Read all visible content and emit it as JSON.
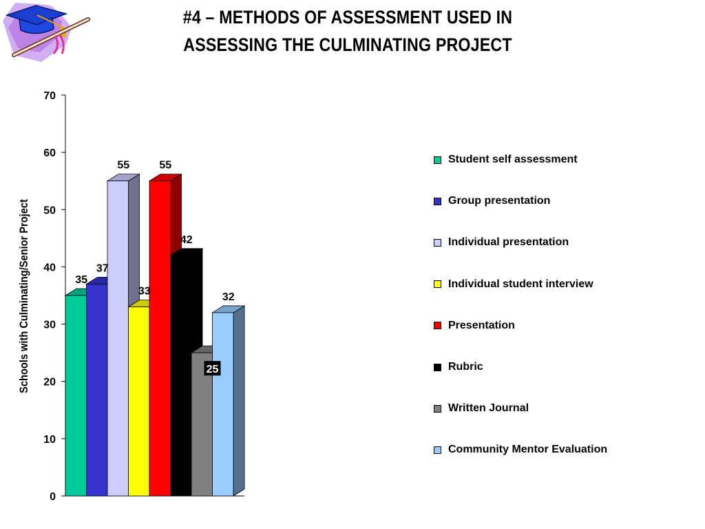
{
  "slide": {
    "title_line1": "#4 – METHODS OF ASSESSMENT USED IN",
    "title_line2": "ASSESSING THE CULMINATING PROJECT"
  },
  "chart_data": {
    "type": "bar",
    "style": "3d",
    "title": "#4 – METHODS OF ASSESSMENT USED IN ASSESSING THE CULMINATING PROJECT",
    "xlabel": "",
    "ylabel": "Schools with Culminating/Senior Project",
    "ylim": [
      0,
      70
    ],
    "yticks": [
      "0",
      "10",
      "20",
      "30",
      "40",
      "50",
      "60",
      "70"
    ],
    "grid": false,
    "legend_position": "right",
    "series": [
      {
        "name": "Student self assessment",
        "value": 35,
        "color": "#00CC99"
      },
      {
        "name": "Group presentation",
        "value": 37,
        "color": "#3333CC"
      },
      {
        "name": "Individual presentation",
        "value": 55,
        "color": "#CCCCFF"
      },
      {
        "name": "Individual student interview",
        "value": 33,
        "color": "#FFFF00"
      },
      {
        "name": "Presentation",
        "value": 55,
        "color": "#FF0000"
      },
      {
        "name": "Rubric",
        "value": 42,
        "color": "#000000"
      },
      {
        "name": "Written Journal",
        "value": 25,
        "color": "#808080"
      },
      {
        "name": "Community Mentor Evaluation",
        "value": 32,
        "color": "#99CCFF"
      }
    ]
  }
}
